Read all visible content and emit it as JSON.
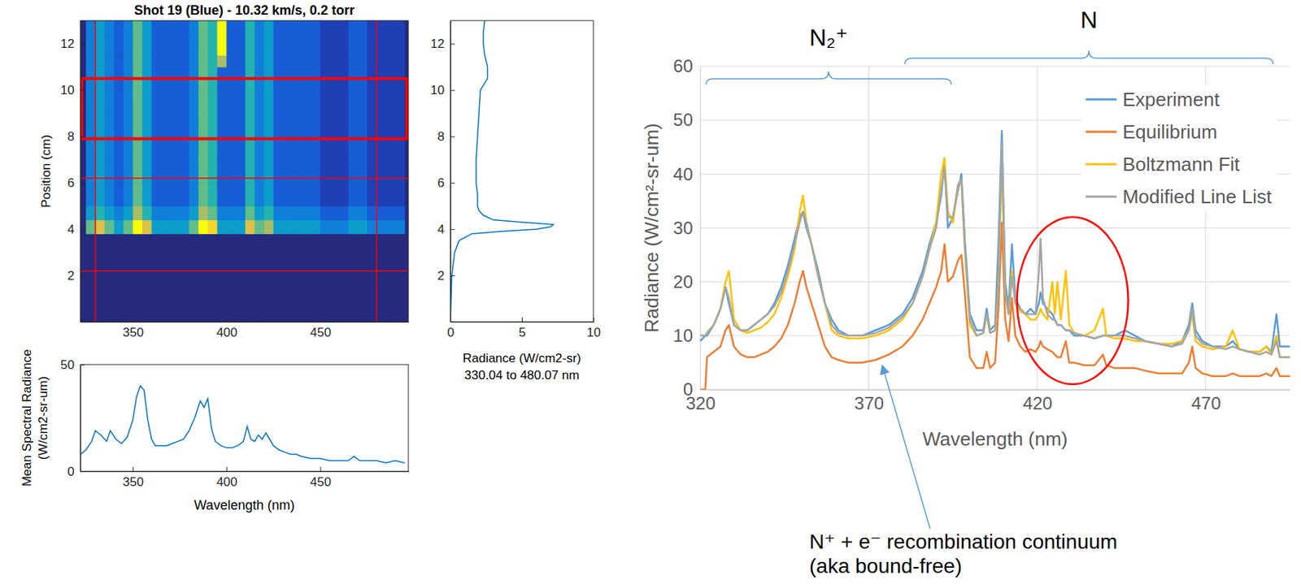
{
  "chart_data": [
    {
      "type": "heatmap",
      "title": "Shot 19 (Blue) - 10.32 km/s, 0.2 torr",
      "y_label": "Position (cm)",
      "xlim": [
        322,
        497
      ],
      "xticks": [
        350,
        400,
        450
      ],
      "ylim": [
        0,
        13
      ],
      "yticks": [
        2,
        4,
        6,
        8,
        10,
        12
      ],
      "zlim": [
        0,
        10
      ],
      "x_edges": [
        325,
        330,
        335,
        340,
        345,
        350,
        355,
        360,
        365,
        370,
        375,
        380,
        385,
        390,
        395,
        400,
        405,
        410,
        415,
        420,
        425,
        430,
        435,
        440,
        445,
        450,
        455,
        460,
        465,
        470,
        475,
        480,
        485,
        490,
        495
      ],
      "y_edges": [
        0,
        3.8,
        4.4,
        5,
        6,
        7,
        8,
        9,
        10,
        11,
        11.5,
        12.5,
        13
      ],
      "cells": [
        [
          0,
          0,
          0,
          0,
          0,
          0,
          0,
          0,
          0,
          0,
          0,
          0,
          0,
          0,
          0,
          0,
          0,
          0,
          0,
          0,
          0,
          0,
          0,
          0,
          0,
          0,
          0,
          0,
          0,
          0,
          0,
          0,
          0,
          0
        ],
        [
          6,
          8,
          6,
          4,
          6,
          10,
          8,
          4,
          4,
          4,
          4,
          6,
          10,
          9,
          4,
          4,
          4,
          8,
          6,
          7,
          4,
          4,
          4,
          4,
          4,
          3,
          3,
          3,
          4,
          4,
          3,
          3,
          3,
          3
        ],
        [
          4,
          5,
          4,
          3,
          4,
          7,
          5,
          3,
          3,
          3,
          3,
          4,
          7,
          6,
          3,
          3,
          3,
          6,
          4,
          5,
          3,
          3,
          3,
          3,
          3,
          2,
          2,
          2,
          3,
          3,
          2,
          2,
          2,
          2
        ],
        [
          3,
          4,
          3,
          2,
          3,
          6,
          4,
          2,
          2,
          2,
          2,
          3,
          6,
          5,
          2,
          2,
          2,
          5,
          3,
          4,
          2,
          2,
          2,
          2,
          2,
          1,
          1,
          1,
          2,
          2,
          1,
          1,
          1,
          1
        ],
        [
          3,
          4,
          3,
          2,
          3,
          6,
          4,
          2,
          2,
          2,
          2,
          3,
          6,
          5,
          2,
          2,
          2,
          5,
          3,
          4,
          2,
          2,
          2,
          2,
          2,
          1,
          1,
          1,
          2,
          2,
          1,
          1,
          1,
          1
        ],
        [
          3,
          4,
          3,
          2,
          3,
          6,
          4,
          2,
          2,
          2,
          2,
          3,
          6,
          5,
          2,
          2,
          2,
          5,
          3,
          4,
          2,
          2,
          2,
          2,
          2,
          1,
          1,
          1,
          2,
          2,
          1,
          1,
          1,
          1
        ],
        [
          3,
          4,
          3,
          2,
          3,
          6,
          4,
          2,
          2,
          2,
          2,
          3,
          6,
          5,
          2,
          2,
          2,
          5,
          3,
          4,
          2,
          2,
          2,
          2,
          2,
          1,
          1,
          1,
          2,
          2,
          1,
          1,
          1,
          1
        ],
        [
          3,
          4,
          3,
          2,
          3,
          6,
          4,
          2,
          2,
          2,
          2,
          3,
          6,
          5,
          2,
          2,
          2,
          5,
          3,
          4,
          2,
          2,
          2,
          2,
          2,
          1,
          1,
          1,
          2,
          2,
          1,
          1,
          1,
          1
        ],
        [
          3,
          4,
          3,
          2,
          3,
          6,
          4,
          2,
          2,
          2,
          2,
          3,
          6,
          5,
          2,
          2,
          2,
          5,
          3,
          4,
          2,
          2,
          2,
          2,
          2,
          1,
          1,
          1,
          2,
          2,
          1,
          1,
          1,
          1
        ],
        [
          3,
          4,
          3,
          2,
          3,
          6,
          4,
          2,
          2,
          2,
          2,
          3,
          6,
          5,
          7,
          2,
          2,
          5,
          3,
          4,
          2,
          2,
          2,
          2,
          2,
          1,
          1,
          1,
          2,
          2,
          1,
          1,
          1,
          1
        ],
        [
          3,
          4,
          3,
          2,
          3,
          6,
          4,
          2,
          2,
          2,
          2,
          3,
          6,
          5,
          10,
          2,
          2,
          5,
          3,
          4,
          2,
          2,
          2,
          2,
          2,
          1,
          1,
          1,
          2,
          2,
          1,
          1,
          1,
          1
        ],
        [
          3,
          4,
          3,
          2,
          3,
          6,
          4,
          2,
          2,
          2,
          2,
          3,
          6,
          5,
          10,
          2,
          2,
          5,
          3,
          4,
          2,
          2,
          2,
          2,
          2,
          1,
          1,
          1,
          2,
          2,
          1,
          1,
          1,
          1
        ]
      ],
      "marker_lines_x": [
        330.04,
        480.07
      ],
      "marker_lines_y": [
        2.2,
        6.2
      ],
      "box_y": [
        7.9,
        10.5
      ],
      "color": "#ff0000"
    },
    {
      "type": "line",
      "orientation": "horizontal",
      "x_label": [
        "Radiance (W/cm2-sr)",
        "330.04 to 480.07 nm"
      ],
      "y": [
        0,
        1,
        2,
        3,
        3.5,
        3.8,
        3.9,
        4.0,
        4.1,
        4.2,
        4.3,
        4.4,
        4.6,
        4.8,
        5,
        5.5,
        6,
        7,
        8,
        9,
        10,
        10.5,
        11,
        11.5,
        12,
        12.5,
        13
      ],
      "values": [
        0,
        0.05,
        0.1,
        0.3,
        0.6,
        1.5,
        3.5,
        6,
        7,
        7.2,
        5,
        3,
        2.3,
        2,
        1.9,
        1.9,
        1.8,
        1.8,
        1.9,
        2.0,
        2.1,
        2.6,
        2.6,
        2.4,
        2.3,
        2.3,
        2.4
      ],
      "xlim": [
        0,
        10
      ],
      "xticks": [
        0,
        5,
        10
      ],
      "ylim": [
        0,
        13
      ],
      "yticks": [
        2,
        4,
        6,
        8,
        10,
        12
      ],
      "color": "#0072bd"
    },
    {
      "type": "line",
      "x_label": "Wavelength (nm)",
      "y_label": [
        "Mean Spectral Radiance",
        "(W/cm2-sr-um)"
      ],
      "x": [
        322,
        325,
        328,
        330,
        333,
        336,
        338,
        341,
        344,
        347,
        350,
        352,
        354,
        356,
        358,
        360,
        362,
        365,
        368,
        371,
        374,
        377,
        380,
        383,
        386,
        388,
        390,
        392,
        394,
        397,
        400,
        403,
        406,
        409,
        411,
        413,
        415,
        417,
        419,
        421,
        423,
        425,
        428,
        431,
        434,
        437,
        440,
        445,
        450,
        455,
        460,
        465,
        468,
        471,
        475,
        480,
        485,
        490,
        495
      ],
      "values": [
        8,
        10,
        14,
        19,
        17,
        14,
        19,
        15,
        13,
        16,
        24,
        35,
        40,
        38,
        24,
        15,
        12,
        12,
        12,
        13,
        14,
        15,
        19,
        25,
        33,
        30,
        34,
        20,
        14,
        12,
        11,
        11,
        12,
        14,
        21,
        15,
        14,
        17,
        15,
        18,
        15,
        12,
        10,
        9,
        8,
        8,
        7,
        6,
        6,
        5,
        5,
        5,
        7,
        5,
        5,
        5,
        4,
        5,
        4
      ],
      "xlim": [
        322,
        497
      ],
      "xticks": [
        350,
        400,
        450
      ],
      "ylim": [
        0,
        50
      ],
      "yticks": [
        0,
        50
      ],
      "color": "#0072bd"
    },
    {
      "type": "line",
      "x_label": "Wavelength (nm)",
      "y_label": "Radiance (W/cm²-sr-um)",
      "x": [
        320,
        321.5,
        322,
        324,
        326,
        327.5,
        328.5,
        330,
        332,
        334,
        336,
        338,
        340,
        342,
        344,
        346,
        348,
        349.5,
        350.5,
        351.5,
        353,
        355,
        357,
        359,
        361,
        364,
        368,
        372,
        376,
        380,
        383,
        386,
        388,
        390,
        391.5,
        392.5,
        393.5,
        395,
        396.5,
        397.5,
        398.5,
        400,
        402,
        404,
        405,
        406,
        407.5,
        408.5,
        409.5,
        410.5,
        411.5,
        412.5,
        413.5,
        415,
        416.5,
        418,
        419.5,
        420.5,
        421,
        421.7,
        423,
        424.5,
        425.2,
        426,
        427,
        428.5,
        429.5,
        431,
        434,
        437,
        439.5,
        440.5,
        443,
        446,
        449,
        452,
        456,
        460,
        463,
        465,
        466,
        467,
        469,
        472,
        476,
        478,
        480,
        483,
        486,
        488,
        489.5,
        491,
        492,
        494,
        495
      ],
      "series": [
        {
          "name": "Experiment",
          "color": "#5b9bd5",
          "values": [
            9,
            10,
            10,
            12,
            15,
            19,
            16,
            12,
            11,
            11,
            12,
            13,
            14,
            16,
            19,
            23,
            28,
            32,
            33,
            30,
            27,
            22,
            16,
            13,
            11,
            10,
            10,
            11,
            12,
            14,
            17,
            22,
            27,
            31,
            36,
            42,
            30,
            32,
            37,
            40,
            28,
            14,
            11,
            11,
            15,
            11,
            12,
            27,
            48,
            20,
            15,
            27,
            17,
            15,
            14,
            15,
            14,
            16,
            18,
            16,
            15,
            14,
            13,
            12,
            12,
            11,
            11,
            10,
            10,
            9.5,
            10,
            10,
            10,
            11,
            10,
            9,
            8.5,
            8,
            9,
            12,
            16,
            11,
            9,
            8,
            8,
            9,
            7.5,
            7,
            7,
            8,
            7,
            14,
            8,
            8,
            8
          ]
        },
        {
          "name": "Equilibrium",
          "color": "#ed7d31",
          "values": [
            0,
            0,
            6,
            7,
            8,
            11,
            12,
            8,
            6.5,
            6,
            6,
            6.5,
            7,
            8,
            9.5,
            12,
            16,
            20,
            22,
            19,
            16,
            12,
            8,
            6,
            5.5,
            5,
            5,
            5.5,
            6.5,
            8,
            10,
            13,
            16,
            19,
            22,
            27,
            20,
            21,
            24,
            25,
            18,
            6,
            4,
            4,
            7,
            4,
            5,
            15,
            31,
            13,
            9,
            17,
            10,
            8,
            7,
            7.5,
            7,
            8,
            9,
            8,
            7.5,
            7,
            6.5,
            6,
            6,
            9,
            5,
            5,
            4.5,
            4.5,
            6.5,
            4.5,
            4,
            4,
            4,
            3.5,
            3,
            3,
            3,
            5,
            8,
            4,
            3,
            2.5,
            2.5,
            3,
            2.5,
            2.5,
            2.5,
            3,
            2.5,
            4,
            2.5,
            2.5,
            2.5
          ]
        },
        {
          "name": "Boltzmann Fit",
          "color": "#ffc000",
          "values": [
            10,
            10,
            10.5,
            12,
            15,
            20,
            22,
            13,
            11,
            10.5,
            11,
            11.5,
            12.5,
            14,
            17,
            21,
            26,
            33,
            36,
            31,
            27,
            21,
            16,
            11,
            10,
            9.5,
            9.5,
            10,
            11,
            13,
            16,
            21,
            26,
            31,
            40,
            43,
            33,
            31,
            38,
            39,
            26,
            12,
            10,
            10.5,
            14,
            10.5,
            11,
            20,
            42,
            18,
            14,
            22,
            16,
            14.5,
            14,
            13,
            13,
            14,
            15,
            14,
            13,
            20,
            14,
            20,
            13,
            22,
            12,
            10.5,
            10,
            11,
            15,
            10,
            9.5,
            9.5,
            9,
            9,
            8.5,
            8.5,
            9,
            11,
            14,
            9,
            8,
            7.5,
            8,
            11,
            7.5,
            7,
            7,
            8,
            6.5,
            10,
            6,
            6,
            6
          ]
        },
        {
          "name": "Modified Line List",
          "color": "#a5a5a5",
          "values": [
            10,
            10,
            10.5,
            12,
            15,
            19,
            17,
            12,
            11,
            11,
            12,
            13,
            14,
            15.5,
            18,
            22,
            27,
            31,
            33,
            31,
            27,
            21,
            16,
            12,
            10.5,
            10,
            10,
            10.5,
            11.5,
            13.5,
            16,
            21,
            26,
            30,
            37,
            41,
            32,
            32,
            38,
            39,
            27,
            13,
            10,
            10.5,
            14,
            10.5,
            11,
            20,
            46,
            18,
            14,
            21,
            16,
            15,
            14,
            14,
            14,
            22,
            28,
            17,
            14,
            13,
            13,
            12,
            12,
            11,
            11,
            10.5,
            10,
            9.5,
            10,
            10,
            10,
            10,
            9.5,
            9,
            8.5,
            8,
            8.5,
            11,
            15,
            10,
            8.5,
            8,
            7.5,
            8,
            7.5,
            7,
            6.5,
            7,
            6.5,
            9,
            6,
            6,
            6
          ]
        }
      ],
      "xlim": [
        320,
        495
      ],
      "xticks": [
        320,
        370,
        420,
        470
      ],
      "ylim": [
        0,
        60
      ],
      "yticks": [
        0,
        10,
        20,
        30,
        40,
        50,
        60
      ],
      "grid": true,
      "legend": "top-right",
      "annotations": [
        {
          "text": "N₂⁺",
          "x_range": [
            321.7,
            394.5
          ]
        },
        {
          "text": "N",
          "x_range": [
            380.7,
            490
          ]
        },
        {
          "lines": [
            "N⁺ + e⁻ recombination continuum",
            "(aka bound-free)"
          ],
          "x": 374,
          "y": 4.5
        }
      ],
      "highlight": {
        "xlim": [
          414,
          447
        ],
        "ylim": [
          1,
          32
        ],
        "color": "#ff0000"
      }
    }
  ]
}
